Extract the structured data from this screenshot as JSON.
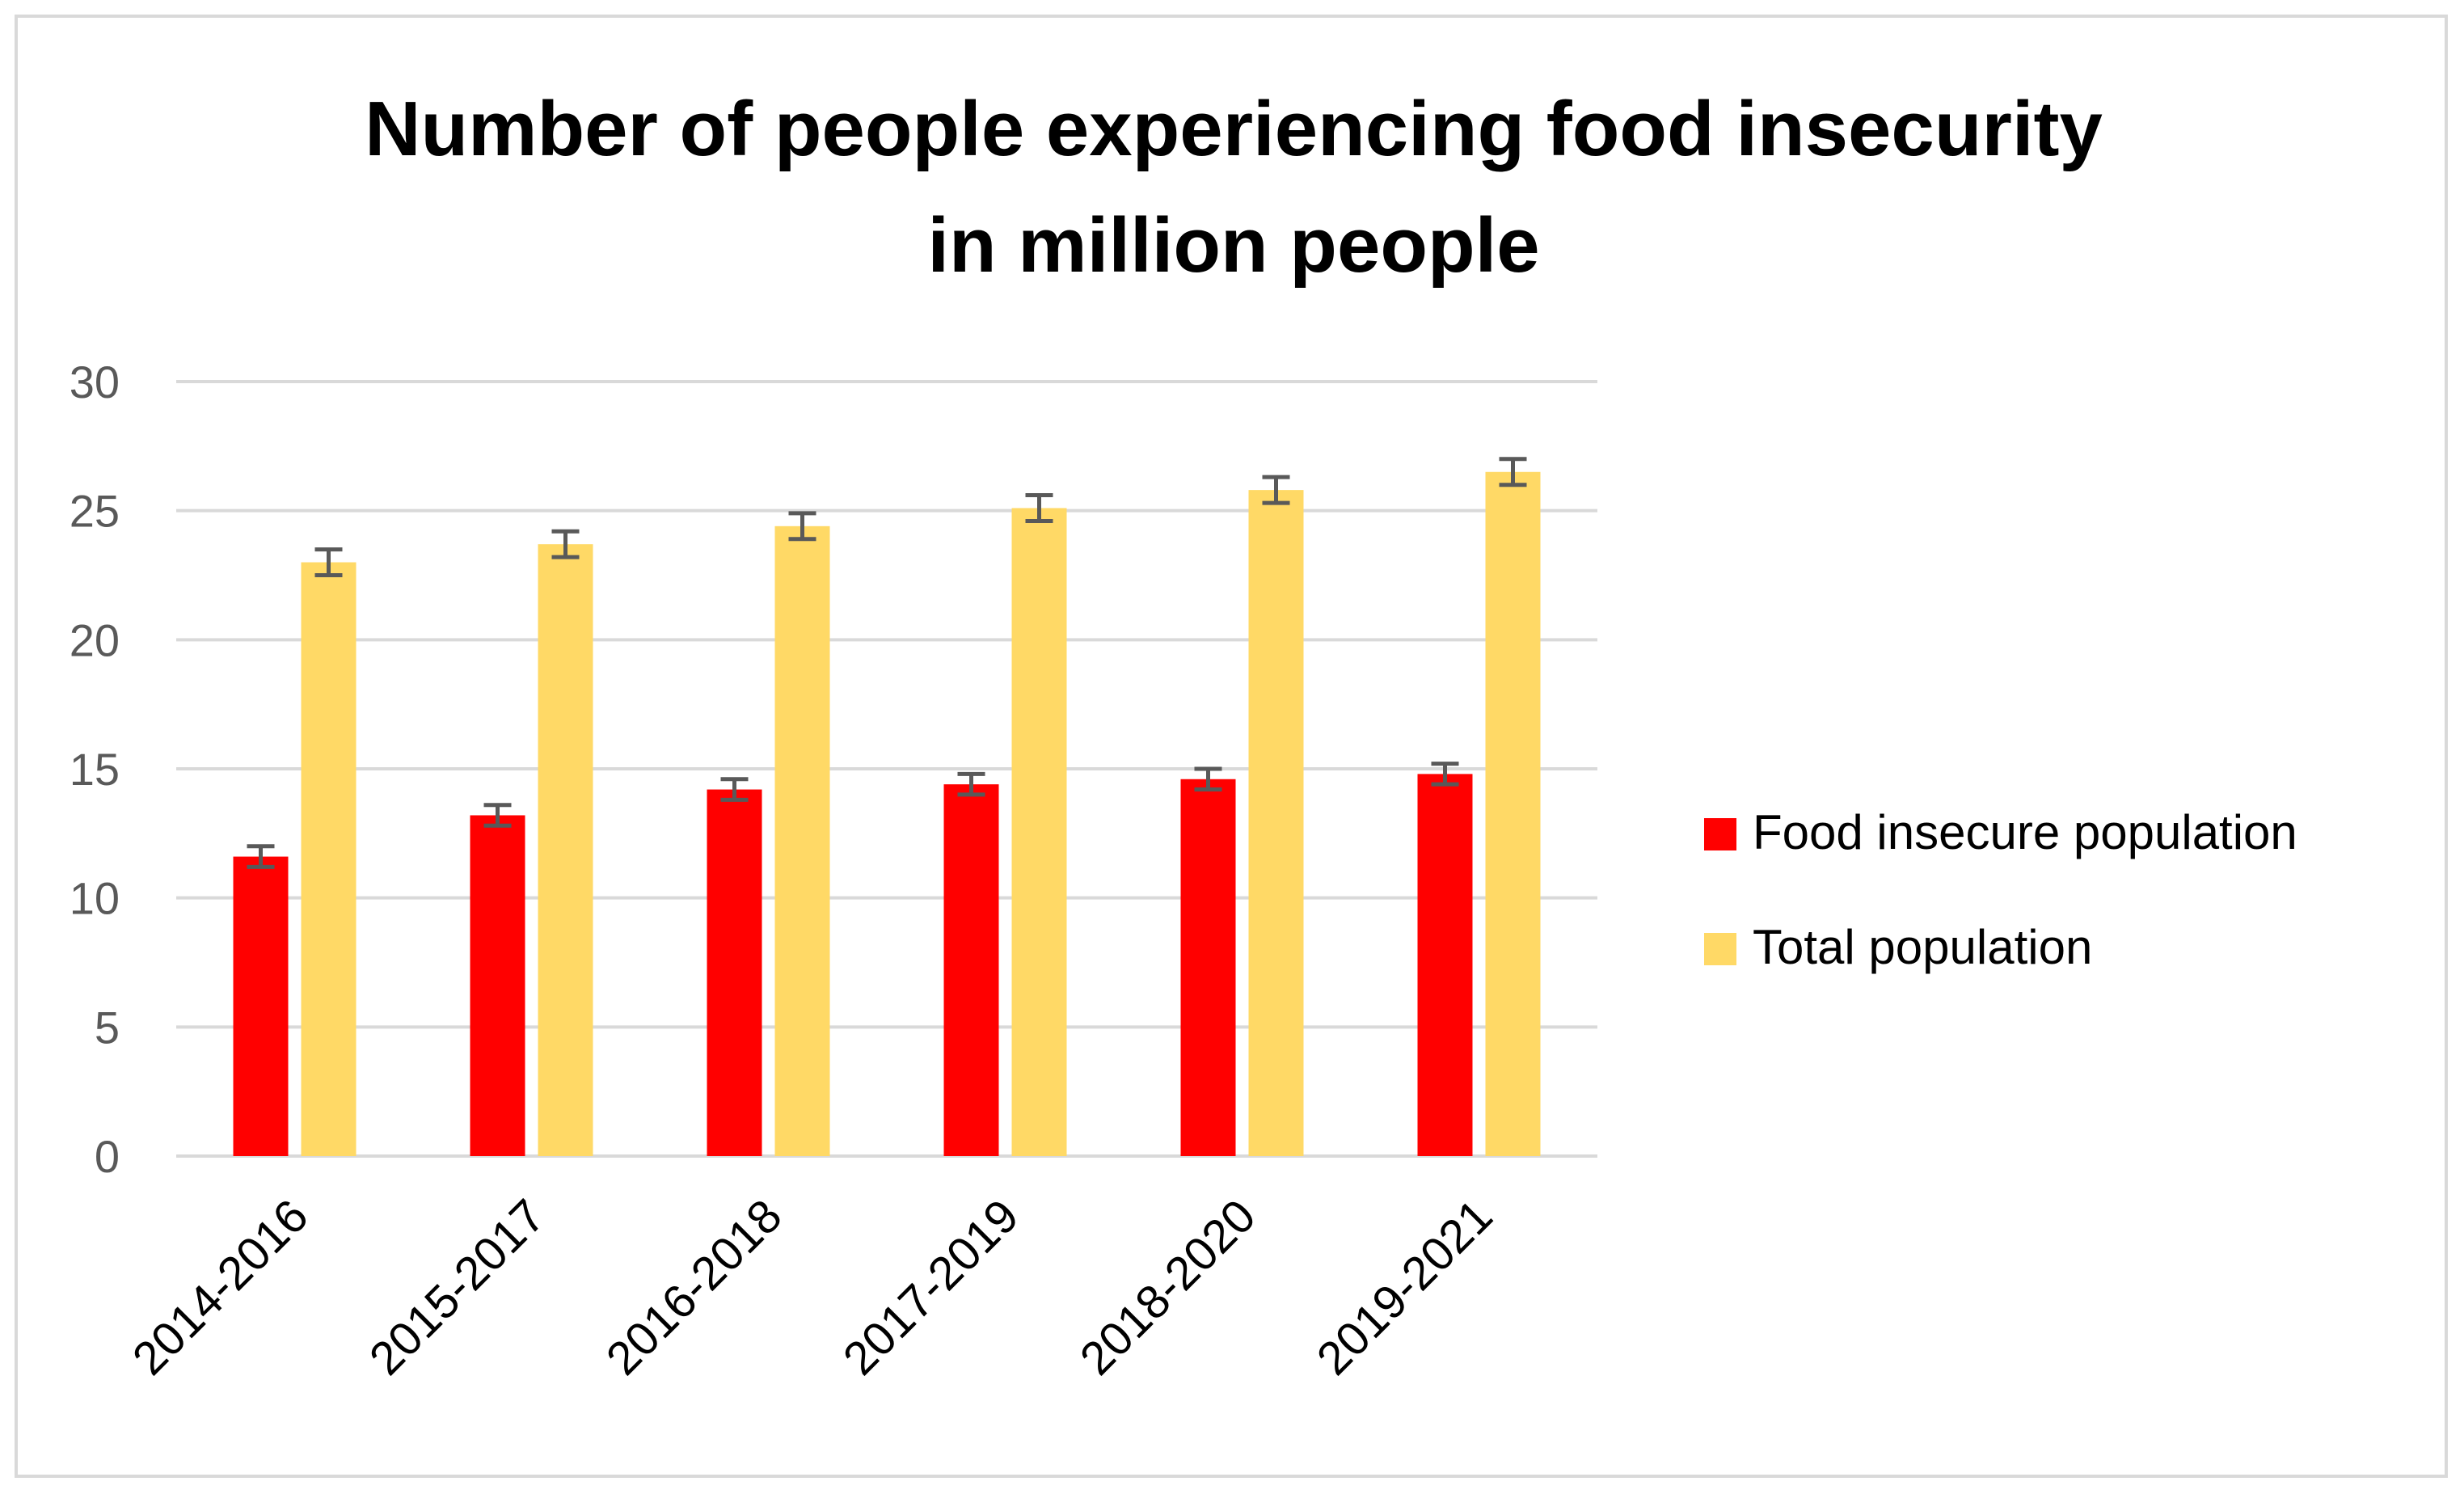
{
  "chart_data": {
    "type": "bar",
    "title": [
      "Number of people experiencing food insecurity",
      "in  million people"
    ],
    "xlabel": "",
    "ylabel": "",
    "ylim": [
      0,
      30
    ],
    "yticks": [
      "0",
      "5",
      "10",
      "15",
      "20",
      "25",
      "30"
    ],
    "grid": true,
    "legend_position": "right",
    "categories": [
      "2014-2016",
      "2015-2017",
      "2016-2018",
      "2017-2019",
      "2018-2020",
      "2019-2021"
    ],
    "series": [
      {
        "name": "Food insecure population",
        "color": "#ff0000",
        "values": [
          11.6,
          13.2,
          14.2,
          14.4,
          14.6,
          14.8
        ],
        "error": [
          0.4,
          0.4,
          0.4,
          0.4,
          0.4,
          0.4
        ]
      },
      {
        "name": "Total population",
        "color": "#ffd966",
        "values": [
          23.0,
          23.7,
          24.4,
          25.1,
          25.8,
          26.5
        ],
        "error": [
          0.5,
          0.5,
          0.5,
          0.5,
          0.5,
          0.5
        ]
      }
    ],
    "gridline_color": "#d9d9d9",
    "errorbar_color": "#595959"
  }
}
